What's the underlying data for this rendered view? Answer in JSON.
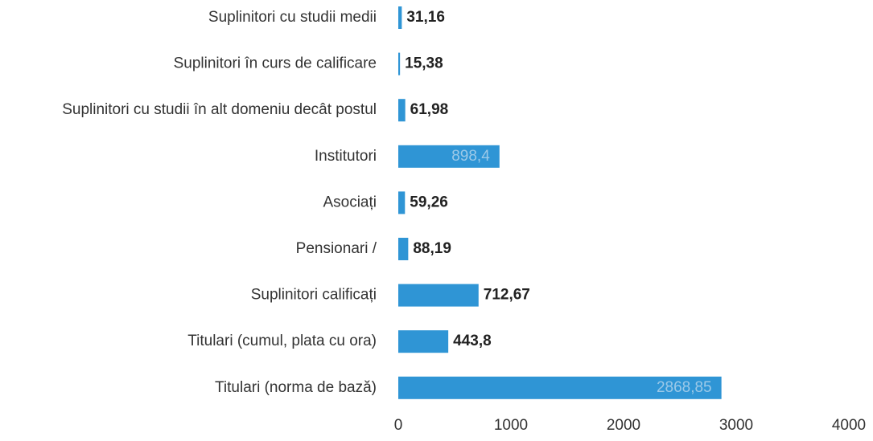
{
  "chart_data": {
    "type": "barh",
    "categories": [
      "Suplinitori cu studii medii",
      "Suplinitori în curs de calificare",
      "Suplinitori cu studii în alt domeniu decât postul",
      "Institutori",
      "Asociați",
      "Pensionari /",
      "Suplinitori calificați",
      "Titulari (cumul, plata cu ora)",
      "Titulari (norma de bază)"
    ],
    "values": [
      31.16,
      15.38,
      61.98,
      898.4,
      59.26,
      88.19,
      712.67,
      443.8,
      2868.85
    ],
    "value_labels": [
      "31,16",
      "15,38",
      "61,98",
      "898,4",
      "59,26",
      "88,19",
      "712,67",
      "443,8",
      "2868,85"
    ],
    "color": "#2f95d5",
    "xlim": [
      0,
      4000
    ],
    "xticks": [
      0,
      1000,
      2000,
      3000,
      4000
    ],
    "grid": false
  }
}
